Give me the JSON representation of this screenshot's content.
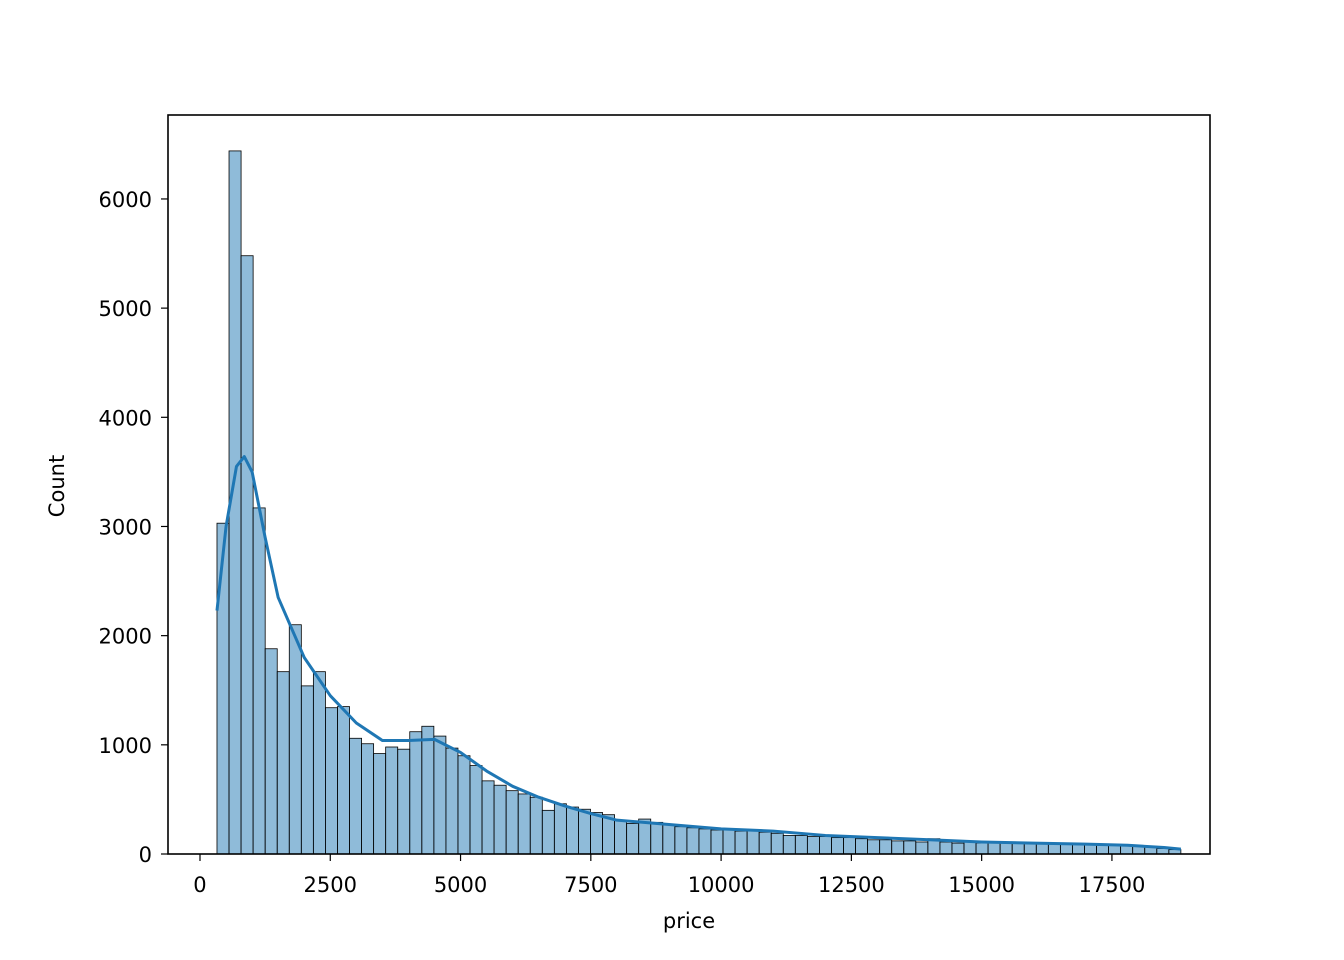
{
  "chart_data": {
    "type": "histogram",
    "x_label": "price",
    "y_label": "Count",
    "color": "#1f77b4",
    "edge_color": "#000000",
    "bins": [
      326,
      557.2,
      788.4,
      1019.6,
      1250.9,
      1482.1,
      1713.3,
      1944.5,
      2175.7,
      2406.9,
      2638.1,
      2869.3,
      3100.6,
      3331.8,
      3563.0,
      3794.2,
      4025.4,
      4256.6,
      4487.8,
      4719.0,
      4950.3,
      5181.5,
      5412.7,
      5643.9,
      5875.1,
      6106.3,
      6337.5,
      6568.7,
      6800.0,
      7031.2,
      7262.4,
      7493.6,
      7724.8,
      7956.0,
      8187.2,
      8418.4,
      8649.7,
      8880.9,
      9112.1,
      9343.3,
      9574.5,
      9805.7,
      10036.9,
      10268.1,
      10499.4,
      10730.6,
      10961.8,
      11193.0,
      11424.2,
      11655.4,
      11886.6,
      12117.8,
      12349.1,
      12580.3,
      12811.5,
      13042.7,
      13273.9,
      13505.1,
      13736.3,
      13967.5,
      14198.8,
      14430.0,
      14661.2,
      14892.4,
      15123.6,
      15354.8,
      15586.0,
      15817.2,
      16048.5,
      16279.7,
      16510.9,
      16742.1,
      16973.3,
      17204.5,
      17435.7,
      17666.9,
      17898.2,
      18129.4,
      18360.6,
      18591.8,
      18823.0
    ],
    "counts": [
      3030,
      6440,
      5480,
      3170,
      1880,
      1670,
      2100,
      1540,
      1670,
      1340,
      1350,
      1060,
      1010,
      920,
      980,
      960,
      1120,
      1170,
      1080,
      970,
      900,
      810,
      670,
      630,
      580,
      550,
      520,
      400,
      460,
      430,
      410,
      380,
      360,
      310,
      280,
      320,
      290,
      270,
      250,
      240,
      230,
      220,
      220,
      210,
      220,
      200,
      190,
      170,
      170,
      160,
      160,
      150,
      150,
      140,
      130,
      130,
      120,
      120,
      110,
      140,
      110,
      100,
      110,
      100,
      100,
      100,
      110,
      100,
      100,
      90,
      90,
      90,
      90,
      80,
      80,
      80,
      70,
      70,
      50,
      40
    ],
    "kde": {
      "x": [
        326,
        500,
        700,
        850,
        1000,
        1250,
        1500,
        2000,
        2500,
        3000,
        3500,
        4000,
        4500,
        5000,
        5500,
        6000,
        6500,
        7000,
        7500,
        8000,
        9000,
        10000,
        11000,
        12000,
        13000,
        14000,
        15000,
        16000,
        17000,
        17800,
        18500,
        18823
      ],
      "values": [
        2230,
        3000,
        3550,
        3640,
        3500,
        2900,
        2350,
        1800,
        1450,
        1200,
        1040,
        1040,
        1050,
        930,
        760,
        620,
        520,
        440,
        370,
        310,
        270,
        230,
        210,
        170,
        150,
        130,
        110,
        100,
        90,
        80,
        60,
        45
      ]
    },
    "xlim": [
      -614,
      19382
    ],
    "ylim": [
      0,
      6769
    ],
    "xticks": [
      0,
      2500,
      5000,
      7500,
      10000,
      12500,
      15000,
      17500
    ],
    "yticks": [
      0,
      1000,
      2000,
      3000,
      4000,
      5000,
      6000
    ]
  }
}
